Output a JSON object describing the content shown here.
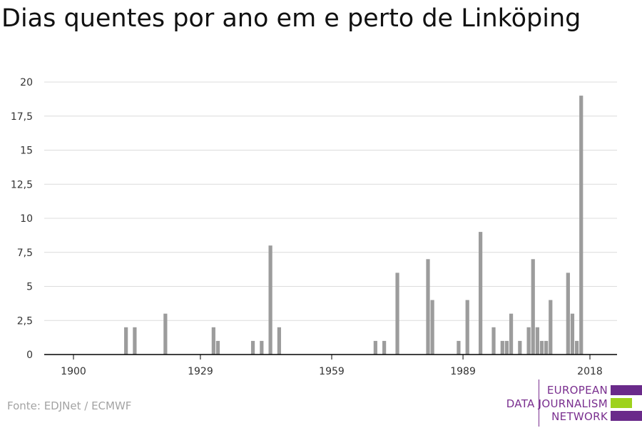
{
  "title": "Dias quentes por ano em e perto de Linköping",
  "source": "Fonte: EDJNet / ECMWF",
  "logo": {
    "lines": [
      "EUROPEAN",
      "DATA JOURNALISM",
      "NETWORK"
    ],
    "colors": {
      "text": "#7a2f8f",
      "bar_purple": "#6a2a8a",
      "bar_green": "#9ed21c"
    }
  },
  "colors": {
    "bars": "#9c9c9c",
    "grid": "#dcdcdc",
    "axis": "#000000"
  },
  "chart_data": {
    "type": "bar",
    "title": "Dias quentes por ano em e perto de Linköping",
    "xlabel": "",
    "ylabel": "",
    "xlim": [
      1900,
      2018
    ],
    "ylim": [
      0,
      20
    ],
    "grid": true,
    "legend": "none",
    "x_ticks": [
      "1900",
      "1929",
      "1959",
      "1989",
      "2018"
    ],
    "y_ticks": [
      "0",
      "2,5",
      "5",
      "7,5",
      "10",
      "12,5",
      "15",
      "17,5",
      "20"
    ],
    "x": [
      1912,
      1914,
      1921,
      1932,
      1933,
      1941,
      1943,
      1945,
      1947,
      1969,
      1971,
      1974,
      1981,
      1982,
      1988,
      1990,
      1993,
      1996,
      1998,
      1999,
      2000,
      2002,
      2004,
      2005,
      2006,
      2007,
      2008,
      2009,
      2013,
      2014,
      2015,
      2016
    ],
    "values": [
      2,
      2,
      3,
      2,
      1,
      1,
      1,
      8,
      2,
      1,
      1,
      6,
      7,
      4,
      1,
      4,
      9,
      2,
      1,
      1,
      3,
      1,
      2,
      7,
      2,
      1,
      1,
      4,
      6,
      3,
      1,
      19
    ]
  }
}
